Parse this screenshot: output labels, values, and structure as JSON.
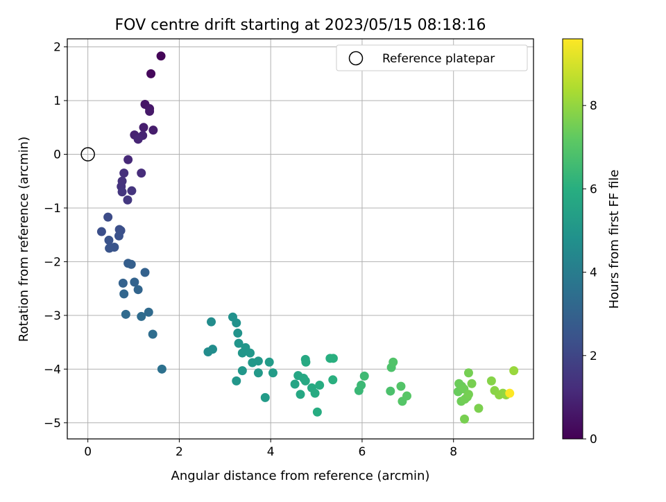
{
  "chart_data": {
    "type": "scatter",
    "title": "FOV centre drift starting at 2023/05/15 08:18:16",
    "xlabel": "Angular distance from reference (arcmin)",
    "ylabel": "Rotation from reference (arcmin)",
    "xlim": [
      -0.45,
      9.75
    ],
    "ylim": [
      -5.3,
      2.15
    ],
    "x_ticks": [
      0,
      2,
      4,
      6,
      8
    ],
    "x_tick_labels": [
      "0",
      "2",
      "4",
      "6",
      "8"
    ],
    "y_ticks": [
      2,
      1,
      0,
      -1,
      -2,
      -3,
      -4,
      -5
    ],
    "y_tick_labels": [
      "2",
      "1",
      "0",
      "−1",
      "−2",
      "−3",
      "−4",
      "−5"
    ],
    "grid": true,
    "legend": {
      "position": "top-right",
      "entries": [
        "Reference platepar"
      ]
    },
    "reference": {
      "x": 0,
      "y": 0
    },
    "colorbar": {
      "label": "Hours from first FF file",
      "range": [
        0,
        9.6
      ],
      "ticks": [
        0,
        2,
        4,
        6,
        8
      ],
      "tick_labels": [
        "0",
        "2",
        "4",
        "6",
        "8"
      ],
      "colormap": "viridis"
    },
    "points": [
      [
        1.6,
        1.83,
        0.1
      ],
      [
        1.38,
        1.5,
        0.2
      ],
      [
        1.25,
        0.93,
        0.55
      ],
      [
        1.35,
        0.85,
        0.6
      ],
      [
        1.35,
        0.8,
        0.65
      ],
      [
        1.22,
        0.5,
        0.8
      ],
      [
        1.43,
        0.45,
        0.75
      ],
      [
        1.02,
        0.36,
        0.9
      ],
      [
        1.2,
        0.35,
        0.95
      ],
      [
        1.1,
        0.28,
        1.0
      ],
      [
        0.88,
        -0.1,
        1.1
      ],
      [
        1.17,
        -0.35,
        1.2
      ],
      [
        0.79,
        -0.35,
        1.3
      ],
      [
        0.75,
        -0.5,
        1.35
      ],
      [
        0.73,
        -0.6,
        1.4
      ],
      [
        0.96,
        -0.68,
        1.45
      ],
      [
        0.75,
        -0.7,
        1.5
      ],
      [
        0.87,
        -0.85,
        1.55
      ],
      [
        0.44,
        -1.17,
        2.2
      ],
      [
        0.69,
        -1.4,
        2.3
      ],
      [
        0.72,
        -1.42,
        2.35
      ],
      [
        0.3,
        -1.44,
        2.3
      ],
      [
        0.68,
        -1.52,
        2.4
      ],
      [
        0.46,
        -1.6,
        2.45
      ],
      [
        0.58,
        -1.73,
        2.5
      ],
      [
        0.47,
        -1.75,
        2.5
      ],
      [
        0.88,
        -2.03,
        2.85
      ],
      [
        0.95,
        -2.05,
        2.9
      ],
      [
        1.25,
        -2.2,
        3.0
      ],
      [
        0.77,
        -2.4,
        3.0
      ],
      [
        1.02,
        -2.38,
        3.05
      ],
      [
        1.1,
        -2.52,
        3.1
      ],
      [
        0.79,
        -2.6,
        3.15
      ],
      [
        1.33,
        -2.94,
        3.3
      ],
      [
        0.83,
        -2.98,
        3.3
      ],
      [
        1.17,
        -3.02,
        3.35
      ],
      [
        1.42,
        -3.35,
        3.4
      ],
      [
        1.62,
        -4.0,
        3.55
      ],
      [
        2.7,
        -3.12,
        4.6
      ],
      [
        2.73,
        -3.63,
        4.65
      ],
      [
        2.63,
        -3.68,
        4.6
      ],
      [
        3.17,
        -3.03,
        4.8
      ],
      [
        3.25,
        -3.14,
        4.85
      ],
      [
        3.28,
        -3.33,
        4.9
      ],
      [
        3.3,
        -3.52,
        4.95
      ],
      [
        3.45,
        -3.6,
        5.0
      ],
      [
        3.38,
        -3.7,
        5.0
      ],
      [
        3.55,
        -3.7,
        5.05
      ],
      [
        3.6,
        -3.88,
        5.1
      ],
      [
        3.73,
        -3.85,
        5.1
      ],
      [
        3.25,
        -4.22,
        5.0
      ],
      [
        3.38,
        -4.03,
        5.05
      ],
      [
        3.73,
        -4.07,
        5.15
      ],
      [
        3.97,
        -3.87,
        5.2
      ],
      [
        4.05,
        -4.07,
        5.25
      ],
      [
        3.88,
        -4.53,
        5.2
      ],
      [
        4.53,
        -4.28,
        5.6
      ],
      [
        4.6,
        -4.12,
        5.65
      ],
      [
        4.72,
        -4.17,
        5.7
      ],
      [
        4.76,
        -4.22,
        5.75
      ],
      [
        4.65,
        -4.47,
        5.7
      ],
      [
        4.76,
        -3.82,
        5.75
      ],
      [
        4.77,
        -3.87,
        5.8
      ],
      [
        4.9,
        -4.35,
        5.8
      ],
      [
        4.97,
        -4.45,
        5.85
      ],
      [
        5.07,
        -4.3,
        5.9
      ],
      [
        5.02,
        -4.8,
        5.9
      ],
      [
        5.3,
        -3.8,
        6.0
      ],
      [
        5.37,
        -3.8,
        6.05
      ],
      [
        5.36,
        -4.2,
        6.05
      ],
      [
        5.93,
        -4.4,
        6.4
      ],
      [
        5.98,
        -4.3,
        6.45
      ],
      [
        6.05,
        -4.13,
        6.5
      ],
      [
        6.62,
        -4.41,
        6.8
      ],
      [
        6.64,
        -3.97,
        6.85
      ],
      [
        6.68,
        -3.87,
        6.9
      ],
      [
        6.85,
        -4.32,
        6.95
      ],
      [
        6.88,
        -4.6,
        7.0
      ],
      [
        6.98,
        -4.5,
        7.05
      ],
      [
        8.1,
        -4.42,
        7.35
      ],
      [
        8.12,
        -4.27,
        7.4
      ],
      [
        8.18,
        -4.32,
        7.4
      ],
      [
        8.17,
        -4.6,
        7.45
      ],
      [
        8.23,
        -4.37,
        7.45
      ],
      [
        8.25,
        -4.56,
        7.5
      ],
      [
        8.3,
        -4.52,
        7.5
      ],
      [
        8.33,
        -4.47,
        7.55
      ],
      [
        8.33,
        -4.07,
        7.55
      ],
      [
        8.4,
        -4.27,
        7.6
      ],
      [
        8.24,
        -4.93,
        7.6
      ],
      [
        8.55,
        -4.73,
        7.65
      ],
      [
        8.83,
        -4.22,
        7.8
      ],
      [
        8.9,
        -4.4,
        7.85
      ],
      [
        9.0,
        -4.48,
        7.9
      ],
      [
        9.08,
        -4.45,
        7.95
      ],
      [
        9.15,
        -4.48,
        8.0
      ],
      [
        9.32,
        -4.03,
        8.1
      ],
      [
        9.23,
        -4.45,
        9.6
      ]
    ]
  }
}
